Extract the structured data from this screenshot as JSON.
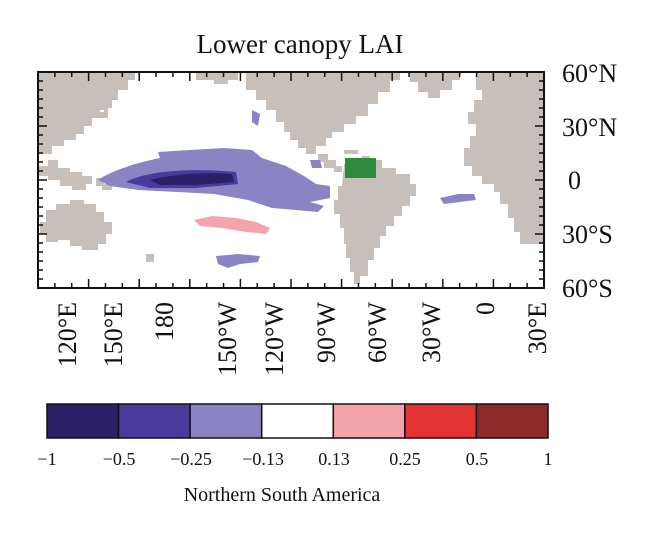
{
  "title": "Lower canopy LAI",
  "latitude_labels": [
    "60°N",
    "30°N",
    "0",
    "30°S",
    "60°S"
  ],
  "longitude_labels": [
    "120°E",
    "150°E",
    "180",
    "150°W",
    "120°W",
    "90°W",
    "60°W",
    "30°W",
    "0",
    "30°E"
  ],
  "colorbar": {
    "ticks": [
      "−1",
      "−0.5",
      "−0.25",
      "−0.13",
      "0.13",
      "0.25",
      "0.5",
      "1"
    ],
    "colors": [
      "#2b1f66",
      "#4a3a9c",
      "#8a84c4",
      "#ffffff",
      "#f4a3aa",
      "#e23232",
      "#8b2b2b"
    ]
  },
  "caption": "Northern South America",
  "colors": {
    "land": "#c6bfba",
    "ocean": "#ffffff",
    "region_marker": "#2e8b3e"
  }
}
